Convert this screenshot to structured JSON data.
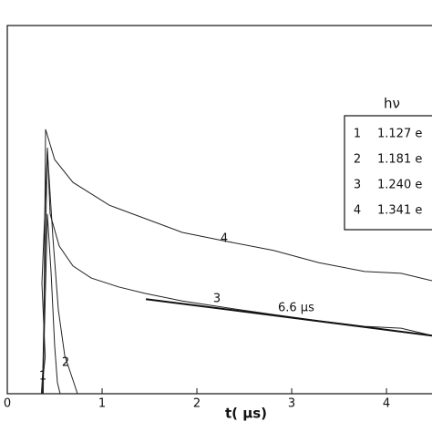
{
  "chart_data": {
    "type": "line",
    "x_label": "t( μs)",
    "xlim": [
      0,
      4.48
    ],
    "xticks": [
      0,
      1,
      2,
      3,
      4
    ],
    "ylim": [
      0,
      1
    ],
    "legend": {
      "title": "hν",
      "position": "upper right"
    },
    "series": [
      {
        "name": "1",
        "energy": "1.127 e",
        "color": "#222222",
        "x": [
          0.36,
          0.385,
          0.423,
          0.462,
          0.5,
          0.529,
          0.558
        ],
        "values": [
          0,
          0.1,
          0.488,
          0.327,
          0.129,
          0.03,
          0
        ]
      },
      {
        "name": "2",
        "energy": "1.181 e",
        "color": "#222222",
        "x": [
          0.36,
          0.4,
          0.365,
          0.423,
          0.481,
          0.538,
          0.606,
          0.702,
          0.74
        ],
        "values": [
          0,
          0.1,
          0.3,
          0.661,
          0.426,
          0.228,
          0.104,
          0.03,
          0
        ]
      },
      {
        "name": "3",
        "energy": "1.240 e",
        "color": "#222222",
        "x": [
          0.37,
          0.423,
          0.452,
          0.548,
          0.692,
          0.885,
          1.173,
          1.462,
          1.846,
          2.327,
          2.808,
          3.288,
          3.769,
          4.154,
          4.48
        ],
        "values": [
          0,
          0.668,
          0.488,
          0.401,
          0.347,
          0.314,
          0.29,
          0.272,
          0.252,
          0.233,
          0.215,
          0.198,
          0.183,
          0.178,
          0.158
        ]
      },
      {
        "name": "4",
        "energy": "1.341 e",
        "color": "#222222",
        "x": [
          0.38,
          0.404,
          0.5,
          0.692,
          1.077,
          1.462,
          1.846,
          2.327,
          2.808,
          3.288,
          3.769,
          4.154,
          4.48
        ],
        "values": [
          0,
          0.718,
          0.636,
          0.574,
          0.512,
          0.475,
          0.438,
          0.413,
          0.389,
          0.356,
          0.332,
          0.327,
          0.307
        ]
      }
    ],
    "fit_line": {
      "x": [
        1.462,
        4.48
      ],
      "values": [
        0.257,
        0.158
      ],
      "label": "6.6  μs"
    }
  }
}
